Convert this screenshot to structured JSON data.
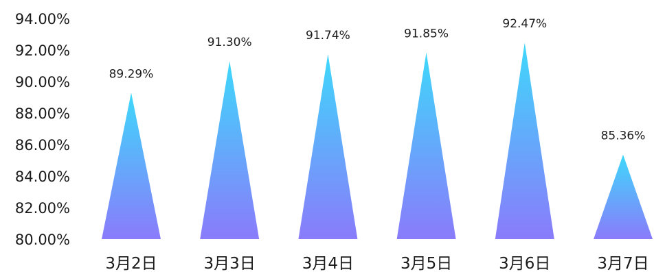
{
  "chart_data": {
    "type": "bar",
    "categories": [
      "3月2日",
      "3月3日",
      "3月4日",
      "3月5日",
      "3月6日",
      "3月7日"
    ],
    "values": [
      89.29,
      91.3,
      91.74,
      91.85,
      92.47,
      85.36
    ],
    "value_labels": [
      "89.29%",
      "91.30%",
      "91.74%",
      "91.85%",
      "92.47%",
      "85.36%"
    ],
    "yticks": [
      80,
      82,
      84,
      86,
      88,
      90,
      92,
      94
    ],
    "ytick_labels": [
      "80.00%",
      "82.00%",
      "84.00%",
      "86.00%",
      "88.00%",
      "90.00%",
      "92.00%",
      "94.00%"
    ],
    "ylim": [
      80,
      94
    ],
    "title": "",
    "xlabel": "",
    "ylabel": "",
    "grid": false,
    "legend": "none",
    "bar_shape": "triangle",
    "colors": {
      "gradient_top": "#3ed8fb",
      "gradient_bottom": "#8a7bfb"
    }
  }
}
